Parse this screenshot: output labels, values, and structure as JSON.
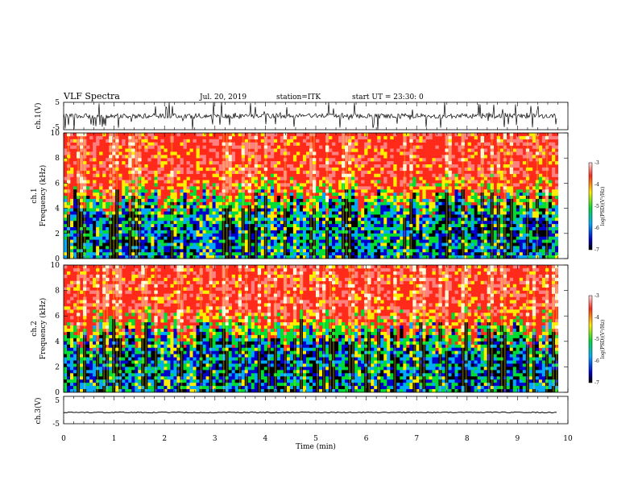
{
  "header": {
    "title": "VLF Spectra",
    "date": "Jul. 20, 2019",
    "station": "station=ITK",
    "start_ut": "start UT =  23:30: 0"
  },
  "chart_data": [
    {
      "type": "line",
      "name": "ch1-waveform",
      "ylabel": "ch.1(V)",
      "ylim": [
        -5,
        5
      ],
      "yticks": [
        "5",
        "-5"
      ],
      "xlim": [
        0,
        10
      ]
    },
    {
      "type": "heatmap",
      "name": "ch1-spectrogram",
      "ylabel_line1": "ch.1",
      "ylabel_line2": "Frequency (kHz)",
      "ylim": [
        0,
        10
      ],
      "yticks": [
        "10",
        "8",
        "6",
        "4",
        "2",
        "0"
      ],
      "xlim": [
        0,
        10
      ],
      "colorbar": {
        "label": "log(PSD)(V²/Hz)",
        "range": [
          -7,
          -3
        ],
        "ticks": [
          "-3",
          "-4",
          "-5",
          "-6",
          "-7"
        ]
      }
    },
    {
      "type": "heatmap",
      "name": "ch2-spectrogram",
      "ylabel_line1": "ch.2",
      "ylabel_line2": "Frequency (kHz)",
      "ylim": [
        0,
        10
      ],
      "yticks": [
        "10",
        "8",
        "6",
        "4",
        "2",
        "0"
      ],
      "xlim": [
        0,
        10
      ],
      "colorbar": {
        "label": "log(PSD)(V²/Hz)",
        "range": [
          -7,
          -3
        ],
        "ticks": [
          "-3",
          "-4",
          "-5",
          "-6",
          "-7"
        ]
      }
    },
    {
      "type": "line",
      "name": "ch3-waveform",
      "ylabel": "ch.3(V)",
      "ylim": [
        -5,
        5
      ],
      "yticks": [
        "5",
        "-5"
      ],
      "xlim": [
        0,
        10
      ],
      "xlabel": "Time (min)",
      "xticks": [
        "0",
        "1",
        "2",
        "3",
        "4",
        "5",
        "6",
        "7",
        "8",
        "9",
        "10"
      ]
    }
  ],
  "colors": {
    "ink": "#000000",
    "high": "#ff2a1a",
    "mid_high": "#ffee00",
    "mid": "#00dd33",
    "low": "#00aaff",
    "lowest": "#0000cc"
  }
}
